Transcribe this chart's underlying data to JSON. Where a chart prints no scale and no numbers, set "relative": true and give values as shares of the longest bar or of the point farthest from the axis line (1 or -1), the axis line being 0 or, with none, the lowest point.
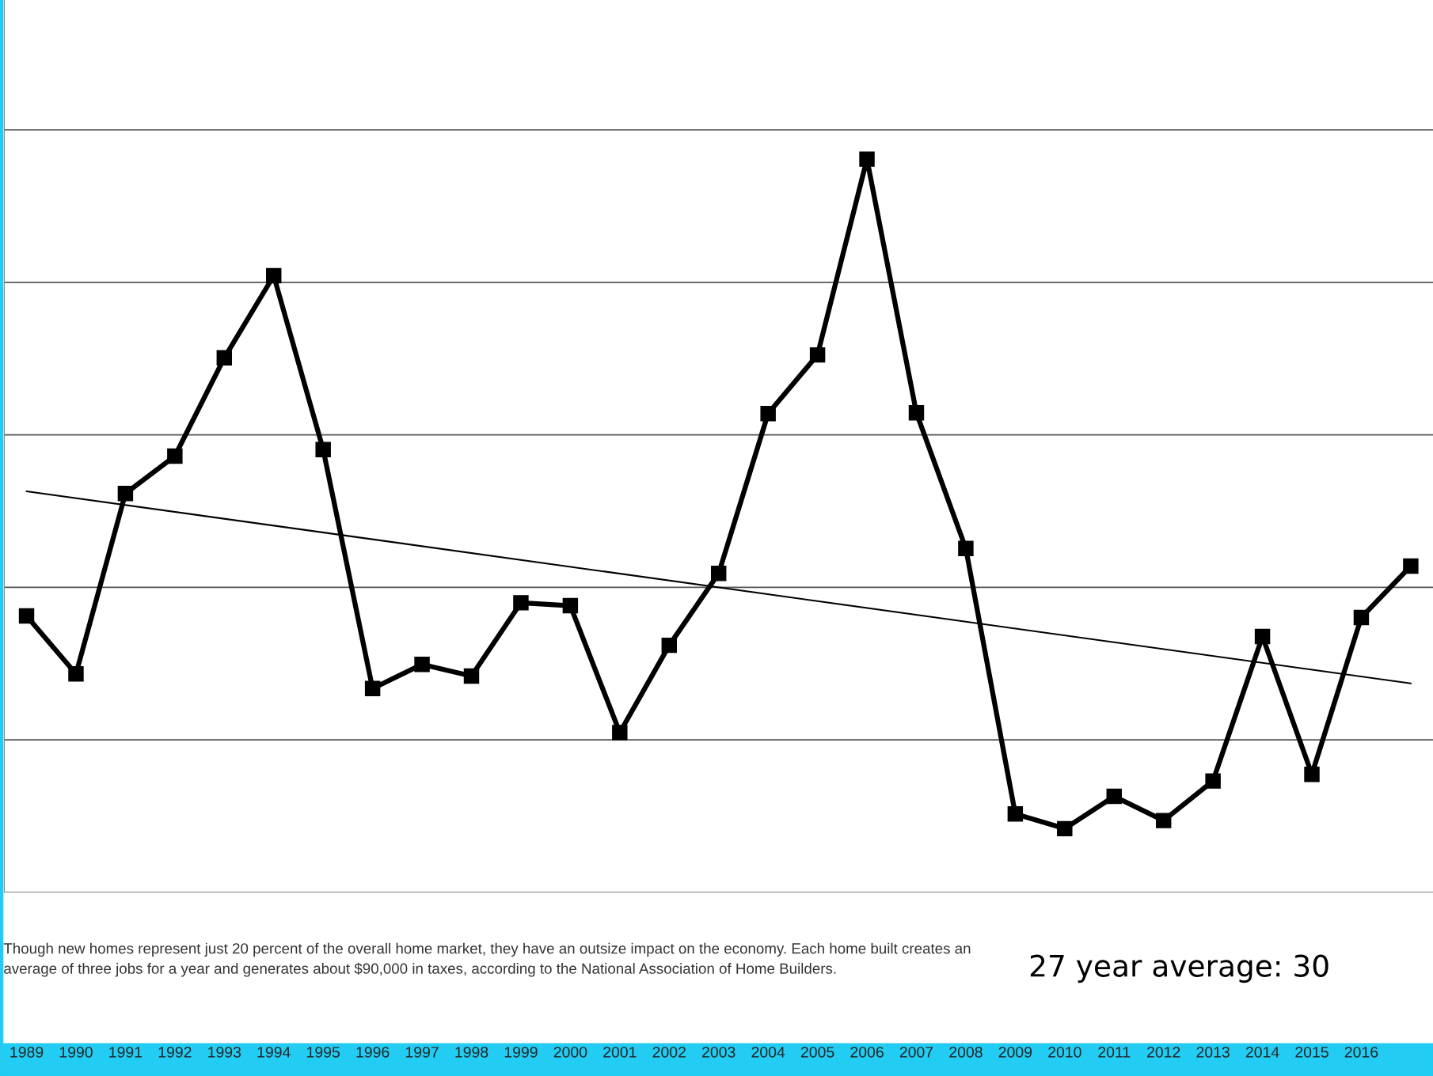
{
  "chart_data": {
    "type": "line",
    "relative": true,
    "grid": "y",
    "marker": "square",
    "line_style": "solid",
    "categories": [
      "1989",
      "1990",
      "1991",
      "1992",
      "1993",
      "1994",
      "1995",
      "1996",
      "1997",
      "1998",
      "1999",
      "2000",
      "2001",
      "2002",
      "2003",
      "2004",
      "2005",
      "2006",
      "2007",
      "2008",
      "2009",
      "2010",
      "2011",
      "2012",
      "2013",
      "2014",
      "2015",
      "2016",
      null
    ],
    "series": [
      {
        "color": "#000000",
        "values": [
          0.377,
          0.298,
          0.544,
          0.595,
          0.729,
          0.841,
          0.604,
          0.278,
          0.311,
          0.295,
          0.395,
          0.391,
          0.218,
          0.337,
          0.435,
          0.653,
          0.733,
          1.0,
          0.654,
          0.469,
          0.107,
          0.087,
          0.131,
          0.098,
          0.152,
          0.349,
          0.161,
          0.375,
          0.445
        ]
      },
      {
        "type": "line",
        "marker": "none",
        "color": "#000000",
        "values": [
          0.547,
          null,
          null,
          null,
          null,
          null,
          null,
          null,
          null,
          null,
          null,
          null,
          null,
          null,
          null,
          null,
          null,
          null,
          null,
          null,
          null,
          null,
          null,
          null,
          null,
          null,
          null,
          null,
          0.285
        ]
      }
    ],
    "annotations": [
      "Though new homes represent just 20 percent of the overall home market, they have an outsize impact on the economy. Each home built creates an average of three jobs for a year and generates about $90,000 in taxes, according to the National Association of Home Builders.",
      "27 year average: 30"
    ]
  }
}
